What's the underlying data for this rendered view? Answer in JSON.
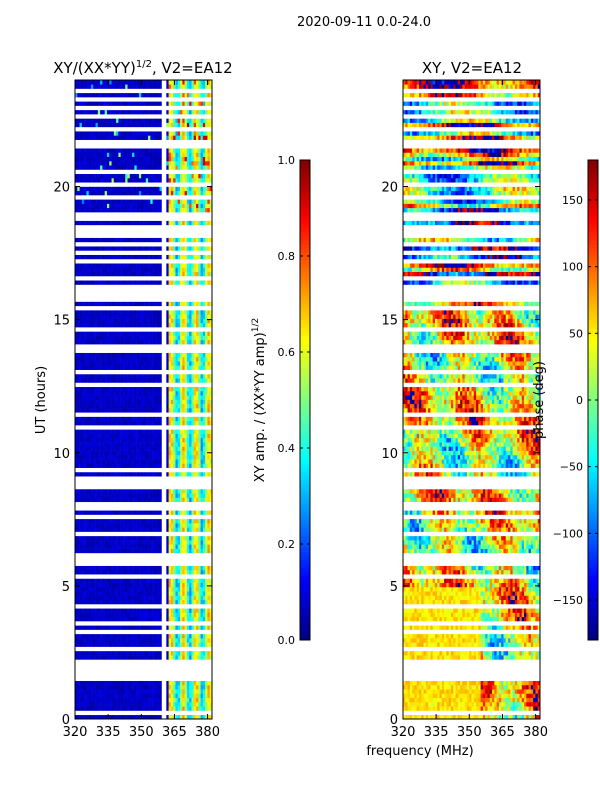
{
  "suptitle": "2020-09-11 0.0-24.0",
  "xlabel": "frequency (MHz)",
  "colors": {
    "jet": [
      "#00007f",
      "#0000ff",
      "#0080ff",
      "#00ffff",
      "#80ff80",
      "#ffff00",
      "#ff8000",
      "#ff0000",
      "#7f0000"
    ],
    "gap": "#ffffff"
  },
  "chart_data": [
    {
      "type": "heatmap",
      "title": "XY/(XX*YY)",
      "title_superscript": "1/2",
      "title_suffix": ", V2=EA12",
      "xlabel": "",
      "ylabel": "UT (hours)",
      "xlim": [
        320,
        382
      ],
      "ylim": [
        0,
        24
      ],
      "xticks": [
        320,
        335,
        350,
        365,
        380
      ],
      "yticks": [
        0,
        5,
        10,
        15,
        20
      ],
      "flag_band_mhz": [
        359.5,
        361.5
      ],
      "bright_band_mhz": [
        362,
        382
      ],
      "gap_rows_hours": [
        0.2,
        1.6,
        1.8,
        2.0,
        2.2,
        2.7,
        3.3,
        3.6,
        4.2,
        5.4,
        5.9,
        6.0,
        6.1,
        7.0,
        7.6,
        8.0,
        8.7,
        8.8,
        8.9,
        9.0,
        9.4,
        10.9,
        11.4,
        12.5,
        13.0,
        13.8,
        14.0,
        14.7,
        15.4,
        15.8,
        15.9,
        16.0,
        16.3,
        16.6,
        17.2,
        17.5,
        17.8,
        18.1,
        18.4,
        18.8,
        19.0,
        19.6,
        20.1,
        20.5,
        21.6,
        22.1,
        22.6,
        23.0,
        23.3,
        23.6
      ],
      "colorbar": {
        "label": "XY amp. / (XX*YY amp)",
        "label_superscript": "1/2",
        "range": [
          0.0,
          1.0
        ],
        "ticks": [
          "0.0",
          "0.2",
          "0.4",
          "0.6",
          "0.8",
          "1.0"
        ],
        "tick_values": [
          0.0,
          0.2,
          0.4,
          0.6,
          0.8,
          1.0
        ]
      }
    },
    {
      "type": "heatmap",
      "title": "XY, V2=EA12",
      "xlabel": "",
      "ylabel": "",
      "xlim": [
        320,
        382
      ],
      "ylim": [
        0,
        24
      ],
      "xticks": [
        320,
        335,
        350,
        365,
        380
      ],
      "yticks": [
        0,
        5,
        10,
        15,
        20
      ],
      "gap_rows_hours": [
        0.2,
        1.6,
        1.8,
        2.0,
        2.2,
        2.7,
        3.3,
        3.6,
        4.2,
        5.4,
        5.9,
        6.0,
        6.1,
        7.0,
        7.6,
        8.0,
        8.7,
        8.8,
        8.9,
        9.0,
        9.4,
        10.9,
        11.4,
        12.5,
        13.0,
        13.8,
        14.0,
        14.7,
        15.4,
        15.8,
        15.9,
        16.0,
        16.3,
        16.6,
        17.2,
        17.5,
        17.8,
        18.1,
        18.4,
        18.8,
        19.0,
        19.6,
        20.1,
        20.5,
        21.6,
        22.1,
        22.6,
        23.0,
        23.3,
        23.6
      ],
      "colorbar": {
        "label": "phase (deg)",
        "range": [
          -180,
          180
        ],
        "ticks": [
          "−150",
          "−100",
          "−50",
          "0",
          "50",
          "100",
          "150"
        ],
        "tick_values": [
          -150,
          -100,
          -50,
          0,
          50,
          100,
          150
        ]
      }
    }
  ]
}
